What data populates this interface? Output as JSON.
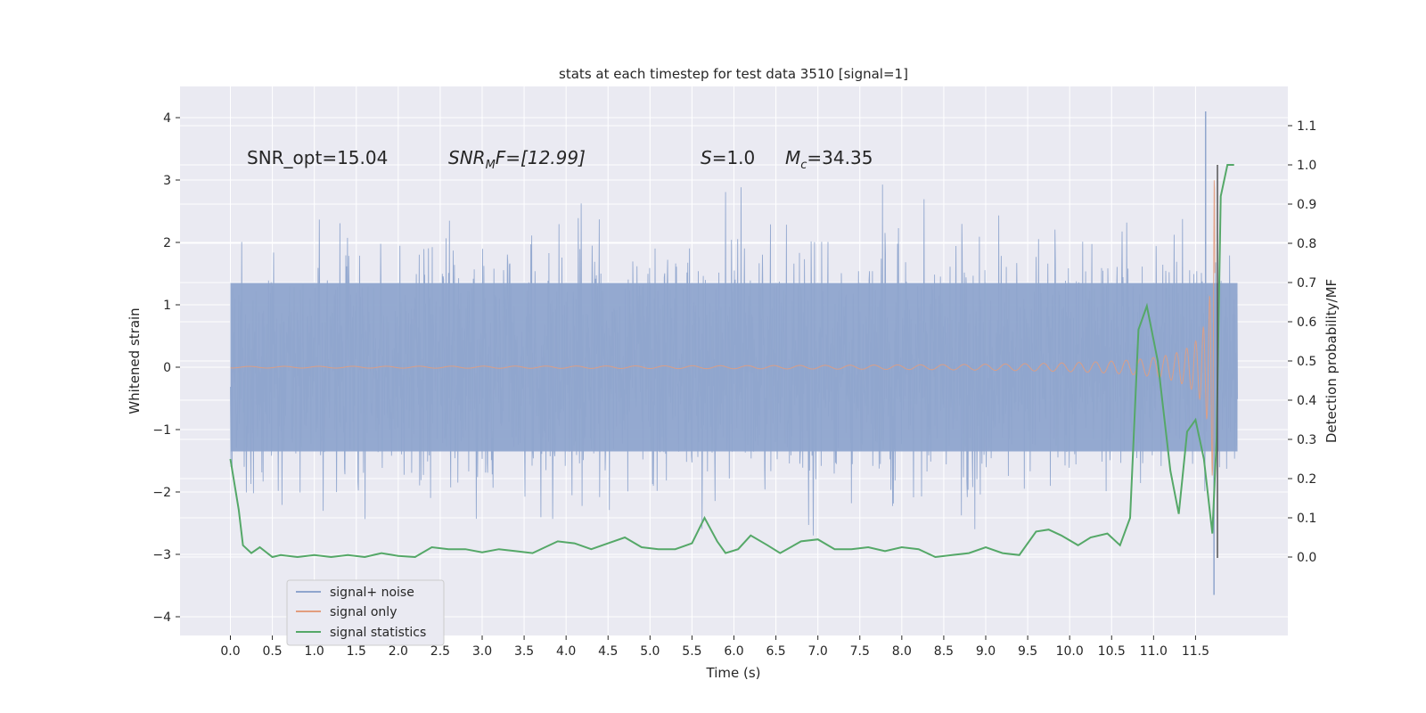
{
  "chart_data": {
    "type": "line",
    "title": "stats at each timestep for test data 3510 [signal=1]",
    "xlabel": "Time (s)",
    "ylabel_left": "Whitened strain",
    "ylabel_right": "Detection probability/MF",
    "xlim": [
      -0.6,
      12.6
    ],
    "ylim_left": [
      -4.3,
      4.5
    ],
    "ylim_right": [
      -0.2,
      1.2
    ],
    "x_ticks": [
      "0.0",
      "0.5",
      "1.0",
      "1.5",
      "2.0",
      "2.5",
      "3.0",
      "3.5",
      "4.0",
      "4.5",
      "5.0",
      "5.5",
      "6.0",
      "6.5",
      "7.0",
      "7.5",
      "8.0",
      "8.5",
      "9.0",
      "9.5",
      "10.0",
      "10.5",
      "11.0",
      "11.5"
    ],
    "y_ticks_left": [
      "4",
      "3",
      "2",
      "1",
      "0",
      "−1",
      "−2",
      "−3",
      "−4"
    ],
    "y_ticks_right": [
      "1.1",
      "1.0",
      "0.9",
      "0.8",
      "0.7",
      "0.6",
      "0.5",
      "0.4",
      "0.3",
      "0.2",
      "0.1",
      "0.0"
    ],
    "grid": true,
    "legend_position": "bottom-left",
    "annotations": {
      "snr_opt": "SNR_opt=15.04",
      "snr_mf_base": "SNR",
      "snr_mf_sub": "M",
      "snr_mf_rest": "F=[12.99]",
      "s_label": "S",
      "s_rest": "=1.0",
      "mc_base": "M",
      "mc_sub": "c",
      "mc_rest": "=34.35"
    },
    "series": [
      {
        "name": "signal+ noise",
        "color": "#8fa5cd",
        "envelope": {
          "time_range": [
            0.0,
            12.0
          ],
          "upper_typical": 2.3,
          "lower_typical": -2.3,
          "peak_max": 4.1,
          "peak_min": -3.65
        }
      },
      {
        "name": "signal only",
        "color": "#e29d7e",
        "chirp": {
          "time_range": [
            0.0,
            11.73
          ],
          "amplitude_end": 3.2,
          "amplitude_min": -3.0
        }
      },
      {
        "name": "signal statistics",
        "color": "#55a868",
        "axis": "right",
        "x": [
          0.0,
          0.1,
          0.15,
          0.25,
          0.35,
          0.5,
          0.6,
          0.8,
          1.0,
          1.2,
          1.4,
          1.6,
          1.8,
          2.0,
          2.2,
          2.4,
          2.6,
          2.8,
          3.0,
          3.2,
          3.4,
          3.6,
          3.75,
          3.9,
          4.1,
          4.3,
          4.5,
          4.7,
          4.9,
          5.1,
          5.3,
          5.5,
          5.65,
          5.8,
          5.9,
          6.05,
          6.2,
          6.4,
          6.55,
          6.8,
          7.0,
          7.2,
          7.4,
          7.6,
          7.8,
          8.0,
          8.2,
          8.4,
          8.6,
          8.8,
          9.0,
          9.2,
          9.4,
          9.6,
          9.75,
          9.9,
          10.1,
          10.25,
          10.45,
          10.6,
          10.72,
          10.82,
          10.92,
          11.05,
          11.2,
          11.3,
          11.4,
          11.5,
          11.6,
          11.7,
          11.75,
          11.8,
          11.88,
          11.96
        ],
        "y": [
          0.25,
          0.12,
          0.03,
          0.01,
          0.025,
          0.0,
          0.005,
          0.0,
          0.005,
          0.0,
          0.005,
          0.0,
          0.01,
          0.003,
          0.0,
          0.025,
          0.02,
          0.02,
          0.012,
          0.02,
          0.015,
          0.01,
          0.025,
          0.04,
          0.035,
          0.02,
          0.035,
          0.05,
          0.025,
          0.02,
          0.02,
          0.035,
          0.1,
          0.04,
          0.01,
          0.02,
          0.055,
          0.03,
          0.01,
          0.04,
          0.045,
          0.02,
          0.02,
          0.025,
          0.015,
          0.025,
          0.02,
          0.0,
          0.005,
          0.01,
          0.025,
          0.01,
          0.005,
          0.065,
          0.07,
          0.055,
          0.03,
          0.05,
          0.06,
          0.03,
          0.1,
          0.58,
          0.64,
          0.5,
          0.22,
          0.11,
          0.32,
          0.35,
          0.25,
          0.06,
          0.3,
          0.92,
          1.0,
          1.0
        ]
      }
    ]
  }
}
